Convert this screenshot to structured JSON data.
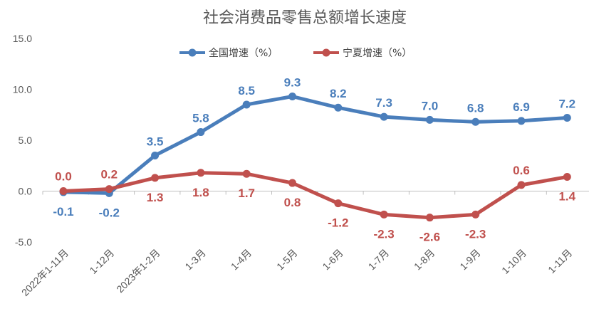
{
  "chart_data": {
    "type": "line",
    "title": "社会消费品零售总额增长速度",
    "categories": [
      "2022年1-11月",
      "1-12月",
      "2023年1-2月",
      "1-3月",
      "1-4月",
      "1-5月",
      "1-6月",
      "1-7月",
      "1-8月",
      "1-9月",
      "1-10月",
      "1-11月"
    ],
    "series": [
      {
        "name": "全国增速（%）",
        "color": "#4a7ebb",
        "values": [
          -0.1,
          -0.2,
          3.5,
          5.8,
          8.5,
          9.3,
          8.2,
          7.3,
          7.0,
          6.8,
          6.9,
          7.2
        ],
        "labels": [
          "-0.1",
          "-0.2",
          "3.5",
          "5.8",
          "8.5",
          "9.3",
          "8.2",
          "7.3",
          "7.0",
          "6.8",
          "6.9",
          "7.2"
        ]
      },
      {
        "name": "宁夏增速（%）",
        "color": "#c0504d",
        "values": [
          0.0,
          0.2,
          1.3,
          1.8,
          1.7,
          0.8,
          -1.2,
          -2.3,
          -2.6,
          -2.3,
          0.6,
          1.4
        ],
        "labels": [
          "0.0",
          "0.2",
          "1.3",
          "1.8",
          "1.7",
          "0.8",
          "-1.2",
          "-2.3",
          "-2.6",
          "-2.3",
          "0.6",
          "1.4"
        ]
      }
    ],
    "yticks": [
      "15.0",
      "10.0",
      "5.0",
      "0.0",
      "-5.0"
    ],
    "ylim": [
      -5,
      15
    ],
    "grid": false,
    "legend_position": "top-center"
  }
}
